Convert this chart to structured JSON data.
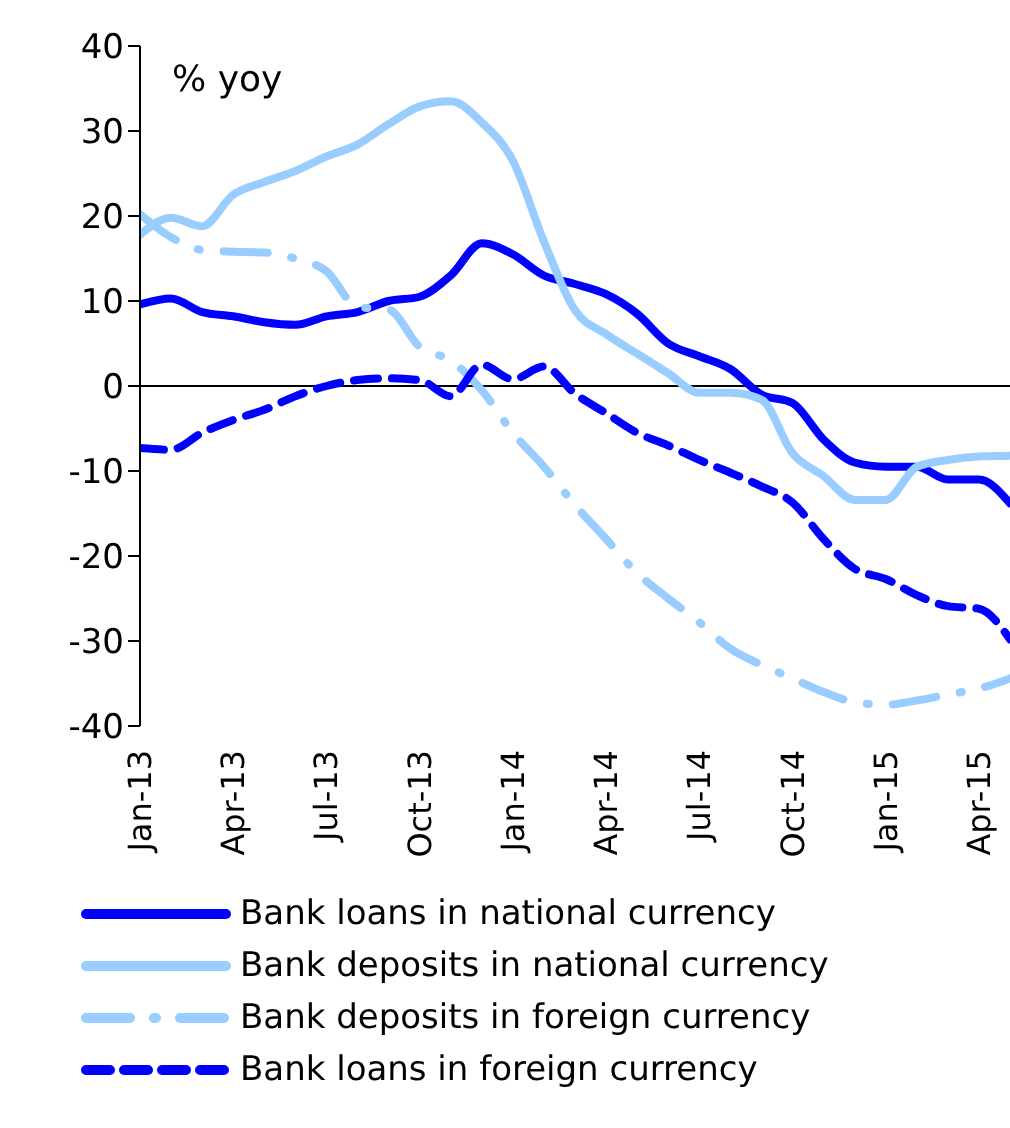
{
  "chart_data": {
    "type": "line",
    "ylabel": "% yoy",
    "categories": [
      "Jan-13",
      null,
      null,
      "Apr-13",
      null,
      null,
      "Jul-13",
      null,
      null,
      "Oct-13",
      null,
      null,
      "Jan-14",
      null,
      null,
      "Apr-14",
      null,
      null,
      "Jul-14",
      null,
      null,
      "Oct-14",
      null,
      null,
      "Jan-15",
      null,
      null,
      "Apr-15",
      null
    ],
    "ylim": [
      -40,
      40
    ],
    "yticks": [
      -40,
      -30,
      -20,
      -10,
      0,
      10,
      20,
      30,
      40
    ],
    "legend": "bottom",
    "marker": "none",
    "series": [
      {
        "name": "Bank loans in national currency",
        "color": "#0000ff",
        "line_style": "solid",
        "values": [
          9.6,
          10.3,
          8.7,
          8.2,
          7.5,
          7.2,
          8.2,
          8.7,
          10,
          10.5,
          13,
          16.8,
          15.5,
          13,
          12,
          10.8,
          8.5,
          5,
          3.5,
          2,
          -1,
          -2,
          -6.3,
          -9,
          -9.5,
          -9.5,
          -11,
          -11,
          -13.8
        ]
      },
      {
        "name": "Bank deposits in national currency",
        "color": "#99ccff",
        "line_style": "solid",
        "values": [
          17.8,
          19.8,
          18.8,
          22.5,
          24,
          25.3,
          27,
          28.4,
          30.8,
          32.9,
          33.5,
          31,
          26.5,
          17,
          8.9,
          6.1,
          3.8,
          1.5,
          -0.8,
          -0.8,
          -1.6,
          -7.9,
          -10.6,
          -13.4,
          -13.4,
          -9.5,
          -8.7,
          -8.3,
          -8.2
        ]
      },
      {
        "name": "Bank deposits in foreign currency",
        "color": "#99ccff",
        "line_style": "dashdot",
        "values": [
          20.2,
          17.5,
          16,
          15.8,
          15.7,
          15,
          13.5,
          9.3,
          9,
          4.6,
          3,
          -0.5,
          -5.5,
          -9.5,
          -14,
          -18,
          -22,
          -25,
          -27.8,
          -30.9,
          -32.8,
          -34.4,
          -36,
          -37.2,
          -37.5,
          -37,
          -36.3,
          -35.6,
          -34.4
        ]
      },
      {
        "name": "Bank loans in foreign currency",
        "color": "#0000ff",
        "line_style": "dashed",
        "values": [
          -7.3,
          -7.5,
          -5.5,
          -4,
          -2.8,
          -1.2,
          0,
          0.7,
          0.9,
          0.7,
          -1.2,
          2.5,
          0.8,
          2.3,
          -0.9,
          -3.2,
          -5.5,
          -7,
          -8.7,
          -10.2,
          -11.8,
          -13.7,
          -18,
          -21.5,
          -22.7,
          -24.6,
          -25.9,
          -26.2,
          -29.8
        ]
      }
    ]
  }
}
